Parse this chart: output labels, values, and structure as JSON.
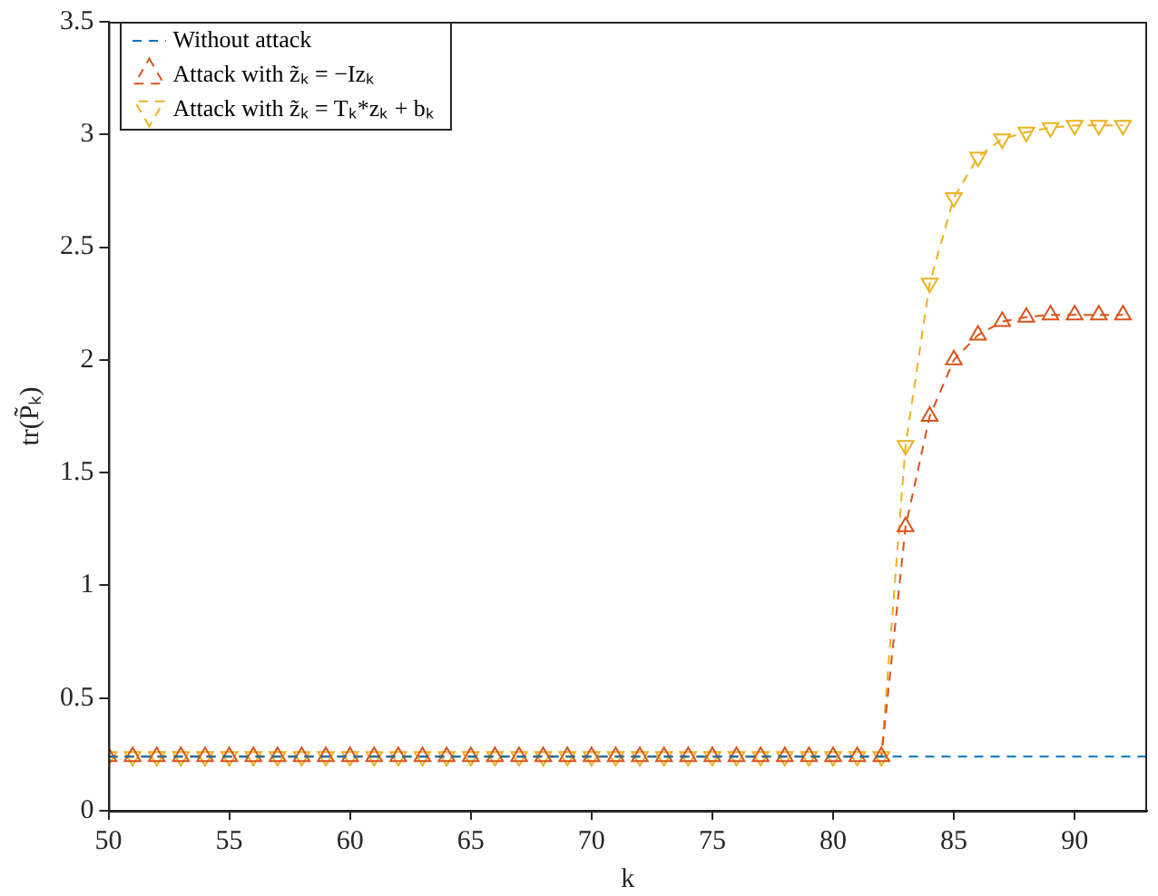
{
  "chart_data": {
    "type": "line",
    "xlabel": "k",
    "ylabel": "tr(P̃ₖ)",
    "xlim": [
      50,
      93
    ],
    "xticks": [
      50,
      55,
      60,
      65,
      70,
      75,
      80,
      85,
      90
    ],
    "ylim": [
      0,
      3.5
    ],
    "yticks": [
      0,
      0.5,
      1,
      1.5,
      2,
      2.5,
      3,
      3.5
    ],
    "grid": false,
    "legend": "top left",
    "line_style": "dashed",
    "series": [
      {
        "name": "Without attack",
        "color": "#0072bd",
        "marker": "none",
        "x": [
          50,
          51,
          52,
          53,
          54,
          55,
          56,
          57,
          58,
          59,
          60,
          61,
          62,
          63,
          64,
          65,
          66,
          67,
          68,
          69,
          70,
          71,
          72,
          73,
          74,
          75,
          76,
          77,
          78,
          79,
          80,
          81,
          82,
          83,
          84,
          85,
          86,
          87,
          88,
          89,
          90,
          91,
          92,
          93
        ],
        "values": [
          0.24,
          0.24,
          0.24,
          0.24,
          0.24,
          0.24,
          0.24,
          0.24,
          0.24,
          0.24,
          0.24,
          0.24,
          0.24,
          0.24,
          0.24,
          0.24,
          0.24,
          0.24,
          0.24,
          0.24,
          0.24,
          0.24,
          0.24,
          0.24,
          0.24,
          0.24,
          0.24,
          0.24,
          0.24,
          0.24,
          0.24,
          0.24,
          0.24,
          0.24,
          0.24,
          0.24,
          0.24,
          0.24,
          0.24,
          0.24,
          0.24,
          0.24,
          0.24,
          0.24
        ]
      },
      {
        "name": "Attack with z̃ₖ = −Izₖ",
        "color": "#d95319",
        "marker": "triangle",
        "x": [
          50,
          51,
          52,
          53,
          54,
          55,
          56,
          57,
          58,
          59,
          60,
          61,
          62,
          63,
          64,
          65,
          66,
          67,
          68,
          69,
          70,
          71,
          72,
          73,
          74,
          75,
          76,
          77,
          78,
          79,
          80,
          81,
          82,
          83,
          84,
          85,
          86,
          87,
          88,
          89,
          90,
          91,
          92
        ],
        "values": [
          0.24,
          0.24,
          0.24,
          0.24,
          0.24,
          0.24,
          0.24,
          0.24,
          0.24,
          0.24,
          0.24,
          0.24,
          0.24,
          0.24,
          0.24,
          0.24,
          0.24,
          0.24,
          0.24,
          0.24,
          0.24,
          0.24,
          0.24,
          0.24,
          0.24,
          0.24,
          0.24,
          0.24,
          0.24,
          0.24,
          0.24,
          0.24,
          0.24,
          1.26,
          1.75,
          2.0,
          2.11,
          2.17,
          2.19,
          2.2,
          2.2,
          2.2,
          2.2
        ]
      },
      {
        "name": "Attack with z̃ₖ = Tₖ*zₖ + bₖ",
        "color": "#edb120",
        "marker": "triangle-down",
        "x": [
          50,
          51,
          52,
          53,
          54,
          55,
          56,
          57,
          58,
          59,
          60,
          61,
          62,
          63,
          64,
          65,
          66,
          67,
          68,
          69,
          70,
          71,
          72,
          73,
          74,
          75,
          76,
          77,
          78,
          79,
          80,
          81,
          82,
          83,
          84,
          85,
          86,
          87,
          88,
          89,
          90,
          91,
          92
        ],
        "values": [
          0.24,
          0.24,
          0.24,
          0.24,
          0.24,
          0.24,
          0.24,
          0.24,
          0.24,
          0.24,
          0.24,
          0.24,
          0.24,
          0.24,
          0.24,
          0.24,
          0.24,
          0.24,
          0.24,
          0.24,
          0.24,
          0.24,
          0.24,
          0.24,
          0.24,
          0.24,
          0.24,
          0.24,
          0.24,
          0.24,
          0.24,
          0.24,
          0.24,
          1.62,
          2.34,
          2.72,
          2.9,
          2.98,
          3.01,
          3.03,
          3.04,
          3.04,
          3.04
        ]
      }
    ]
  }
}
